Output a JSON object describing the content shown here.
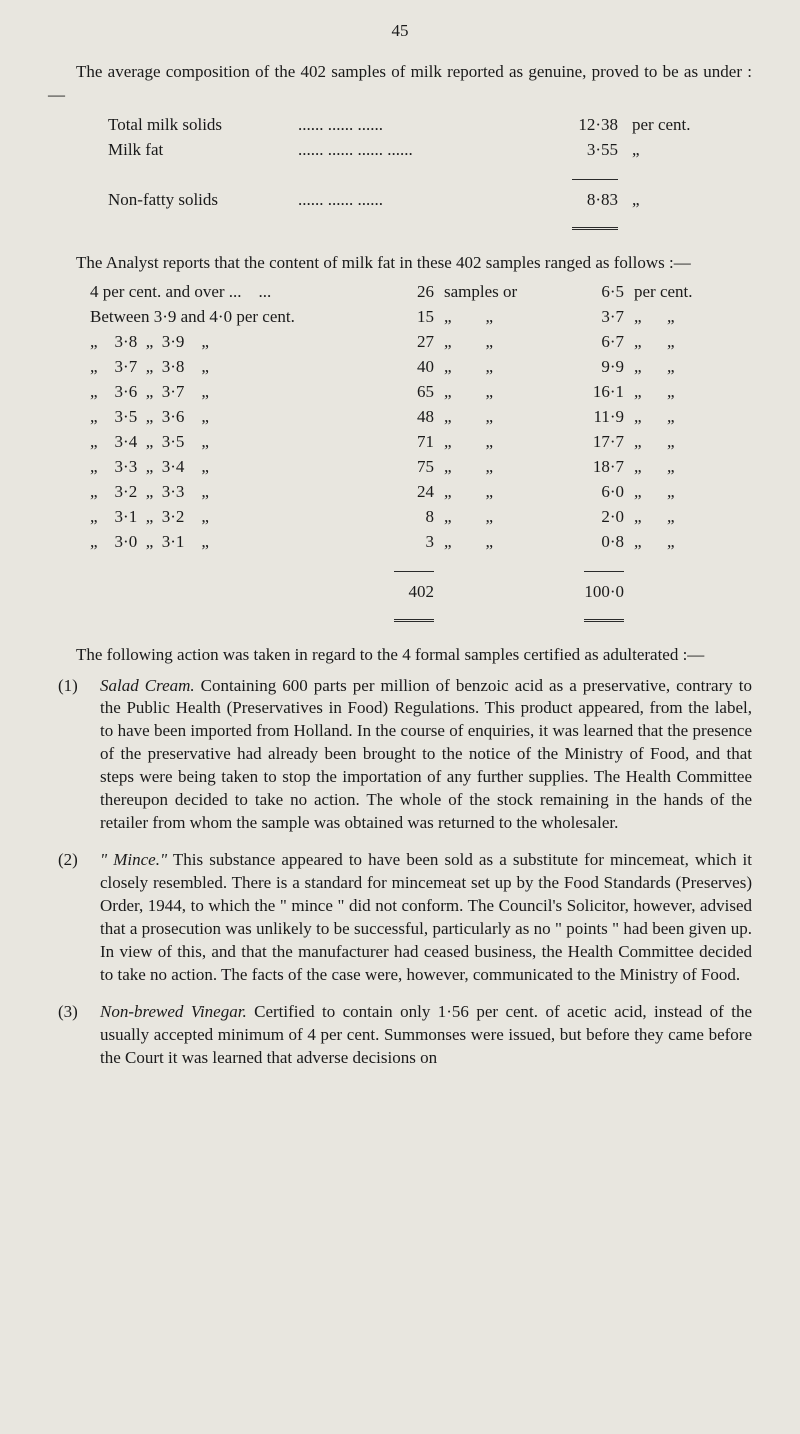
{
  "page_number": "45",
  "intro_para": "The average composition of the 402 samples of milk reported as genuine, proved to be as under :—",
  "composition": {
    "rows": [
      {
        "label": "Total milk solids",
        "dots": "......  ......  ......",
        "value": "12·38",
        "unit": "per cent."
      },
      {
        "label": "Milk fat",
        "dots": "......  ......  ......  ......",
        "value": "3·55",
        "unit": "„"
      }
    ],
    "result": {
      "label": "Non-fatty solids",
      "dots": "......  ......  ......",
      "value": "8·83",
      "unit": "„"
    }
  },
  "analyst_para": "The Analyst reports that the content of milk fat in these 402 samples ranged as follows :—",
  "fat_rows": [
    {
      "left": "4 per cent. and over ...    ...",
      "n": "26",
      "word": "samples or",
      "pct": "6·5",
      "unit": "per cent."
    },
    {
      "left": "Between 3·9 and 4·0 per cent.",
      "n": "15",
      "word": "„        „",
      "pct": "3·7",
      "unit": "„      „"
    },
    {
      "left": "„    3·8  „  3·9    „",
      "n": "27",
      "word": "„        „",
      "pct": "6·7",
      "unit": "„      „"
    },
    {
      "left": "„    3·7  „  3·8    „",
      "n": "40",
      "word": "„        „",
      "pct": "9·9",
      "unit": "„      „"
    },
    {
      "left": "„    3·6  „  3·7    „",
      "n": "65",
      "word": "„        „",
      "pct": "16·1",
      "unit": "„      „"
    },
    {
      "left": "„    3·5  „  3·6    „",
      "n": "48",
      "word": "„        „",
      "pct": "11·9",
      "unit": "„      „"
    },
    {
      "left": "„    3·4  „  3·5    „",
      "n": "71",
      "word": "„        „",
      "pct": "17·7",
      "unit": "„      „"
    },
    {
      "left": "„    3·3  „  3·4    „",
      "n": "75",
      "word": "„        „",
      "pct": "18·7",
      "unit": "„      „"
    },
    {
      "left": "„    3·2  „  3·3    „",
      "n": "24",
      "word": "„        „",
      "pct": "6·0",
      "unit": "„      „"
    },
    {
      "left": "„    3·1  „  3·2    „",
      "n": "8",
      "word": "„        „",
      "pct": "2·0",
      "unit": "„      „"
    },
    {
      "left": "„    3·0  „  3·1    „",
      "n": "3",
      "word": "„        „",
      "pct": "0·8",
      "unit": "„      „"
    }
  ],
  "fat_totals": {
    "n": "402",
    "pct": "100·0"
  },
  "following_para": "The following action was taken in regard to the 4 formal samples certified as adulterated :—",
  "items": [
    {
      "num": "(1)",
      "title": "Salad Cream.",
      "body": "  Containing 600 parts per million of benzoic acid as a preservative, contrary to the Public Health (Preservatives in Food) Regulations. This product appeared, from the label, to have been imported from Holland. In the course of enquiries, it was learned that the presence of the preservative had already been brought to the notice of the Ministry of Food, and that steps were being taken to stop the importation of any further supplies. The Health Committee thereupon decided to take no action. The whole of the stock remaining in the hands of the retailer from whom the sample was obtained was returned to the wholesaler."
    },
    {
      "num": "(2)",
      "title": "\" Mince.\"",
      "body": "  This substance appeared to have been sold as a substitute for mincemeat, which it closely resembled. There is a standard for mincemeat set up by the Food Standards (Preserves) Order, 1944, to which the \" mince \" did not conform. The Council's Solicitor, however, advised that a prosecution was unlikely to be successful, particularly as no \" points \" had been given up. In view of this, and that the manufacturer had ceased business, the Health Committee decided to take no action. The facts of the case were, however, communicated to the Ministry of Food."
    },
    {
      "num": "(3)",
      "title": "Non-brewed Vinegar.",
      "body": "  Certified to contain only 1·56 per cent. of acetic acid, instead of the usually accepted minimum of 4 per cent. Summonses were issued, but before they came before the Court it was learned that adverse decisions on"
    }
  ]
}
